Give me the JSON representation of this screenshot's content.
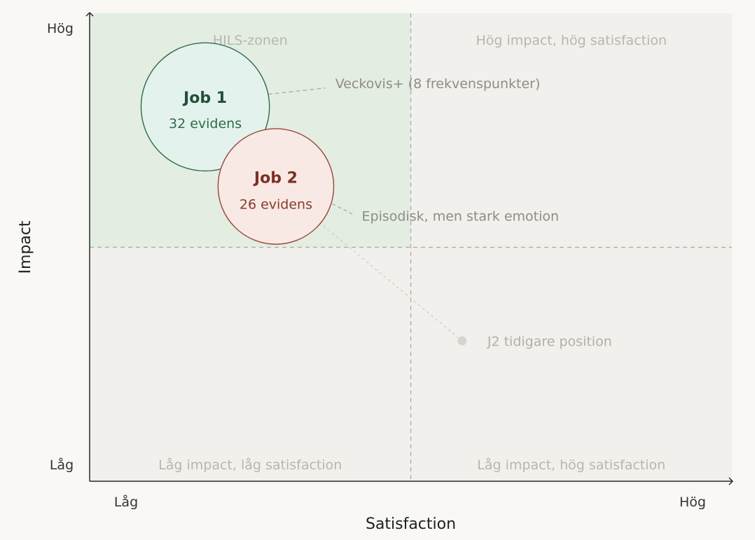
{
  "colors": {
    "background": "#f9f8f4",
    "plot_bg": "#f1f0ec",
    "highlight_zone": "#e3ede2",
    "job1_fill": "#e3f2ec",
    "job1_stroke": "#2f6a4b",
    "job1_text": "#234f3a",
    "job2_fill": "#f9e9e5",
    "job2_stroke": "#9a4535",
    "job2_text": "#7b3022",
    "previous_marker": "#d6d4cf"
  },
  "chart_data": {
    "type": "scatter",
    "xlabel": "Satisfaction",
    "ylabel": "Impact",
    "xlim": [
      0,
      100
    ],
    "ylim": [
      0,
      100
    ],
    "x_tick_labels": [
      "Låg",
      "Hög"
    ],
    "y_tick_labels": [
      "Låg",
      "Hög"
    ],
    "x_divider": 50,
    "y_divider": 50,
    "grid": false,
    "quadrant_labels": {
      "top_left": "HILS-zonen",
      "top_right": "Hög impact, hög satisfaction",
      "bottom_left": "Låg impact, låg satisfaction",
      "bottom_right": "Låg impact, hög satisfaction"
    },
    "points": [
      {
        "name": "Job 1",
        "label": "32 evidens",
        "evidence": 32,
        "x": 18,
        "y": 80,
        "annotation": "Veckovis+ (8 frekvenspunkter)"
      },
      {
        "name": "Job 2",
        "label": "26 evidens",
        "evidence": 26,
        "x": 29,
        "y": 63,
        "annotation": "Episodisk, men stark emotion"
      }
    ],
    "previous_position": {
      "label": "J2 tidigare position",
      "x": 58,
      "y": 30
    }
  }
}
